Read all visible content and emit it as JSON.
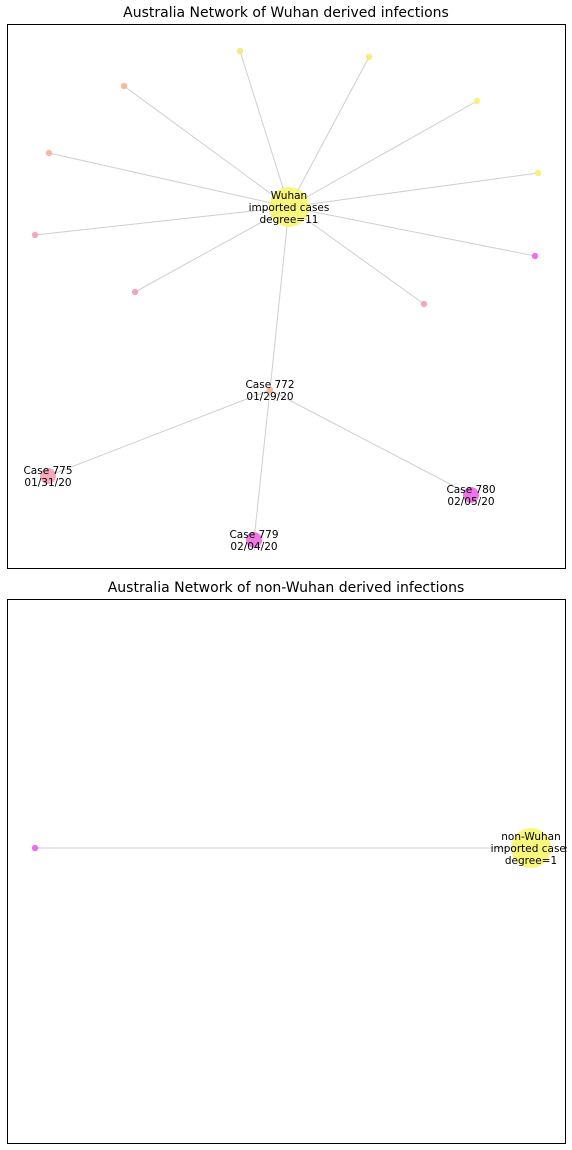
{
  "panels": [
    {
      "title": "Australia Network of Wuhan derived infections",
      "nodes": [
        {
          "id": "hub",
          "label_lines": [
            "Wuhan",
            "imported cases",
            "degree=11"
          ],
          "color": "#f8f467",
          "size": "large"
        },
        {
          "id": "n1",
          "label_lines": [],
          "color": "#f8e47a",
          "size": "small"
        },
        {
          "id": "n2",
          "label_lines": [],
          "color": "#f8ea6e",
          "size": "small"
        },
        {
          "id": "n3",
          "label_lines": [],
          "color": "#f8b48e",
          "size": "small"
        },
        {
          "id": "n4",
          "label_lines": [],
          "color": "#f8ee70",
          "size": "small"
        },
        {
          "id": "n5",
          "label_lines": [],
          "color": "#f6b09c",
          "size": "small"
        },
        {
          "id": "n6",
          "label_lines": [],
          "color": "#f8ee70",
          "size": "small"
        },
        {
          "id": "n7",
          "label_lines": [],
          "color": "#f29eb8",
          "size": "small"
        },
        {
          "id": "n8",
          "label_lines": [],
          "color": "#ec5eec",
          "size": "small"
        },
        {
          "id": "n9",
          "label_lines": [],
          "color": "#f09cbc",
          "size": "small"
        },
        {
          "id": "n10",
          "label_lines": [],
          "color": "#f0a0b8",
          "size": "small"
        },
        {
          "id": "c772",
          "label_lines": [
            "Case 772",
            "01/29/20"
          ],
          "color": "#f6b08c",
          "size": "small"
        },
        {
          "id": "c775",
          "label_lines": [
            "Case 775",
            "01/31/20"
          ],
          "color": "#f4a0b4",
          "size": "medium"
        },
        {
          "id": "c780",
          "label_lines": [
            "Case 780",
            "02/05/20"
          ],
          "color": "#ec64e6",
          "size": "medium"
        },
        {
          "id": "c779",
          "label_lines": [
            "Case 779",
            "02/04/20"
          ],
          "color": "#ee6ade",
          "size": "medium"
        }
      ],
      "edges": [
        [
          "hub",
          "n1"
        ],
        [
          "hub",
          "n2"
        ],
        [
          "hub",
          "n3"
        ],
        [
          "hub",
          "n4"
        ],
        [
          "hub",
          "n5"
        ],
        [
          "hub",
          "n6"
        ],
        [
          "hub",
          "n7"
        ],
        [
          "hub",
          "n8"
        ],
        [
          "hub",
          "n9"
        ],
        [
          "hub",
          "n10"
        ],
        [
          "hub",
          "c772"
        ],
        [
          "c772",
          "c775"
        ],
        [
          "c772",
          "c780"
        ],
        [
          "c772",
          "c779"
        ]
      ]
    },
    {
      "title": "Australia Network of non-Wuhan derived infections",
      "nodes": [
        {
          "id": "hub2",
          "label_lines": [
            "non-Wuhan",
            "imported cases",
            "degree=1"
          ],
          "color": "#f8f467",
          "size": "large"
        },
        {
          "id": "m1",
          "label_lines": [],
          "color": "#ec5eec",
          "size": "small"
        }
      ],
      "edges": [
        [
          "hub2",
          "m1"
        ]
      ]
    }
  ]
}
